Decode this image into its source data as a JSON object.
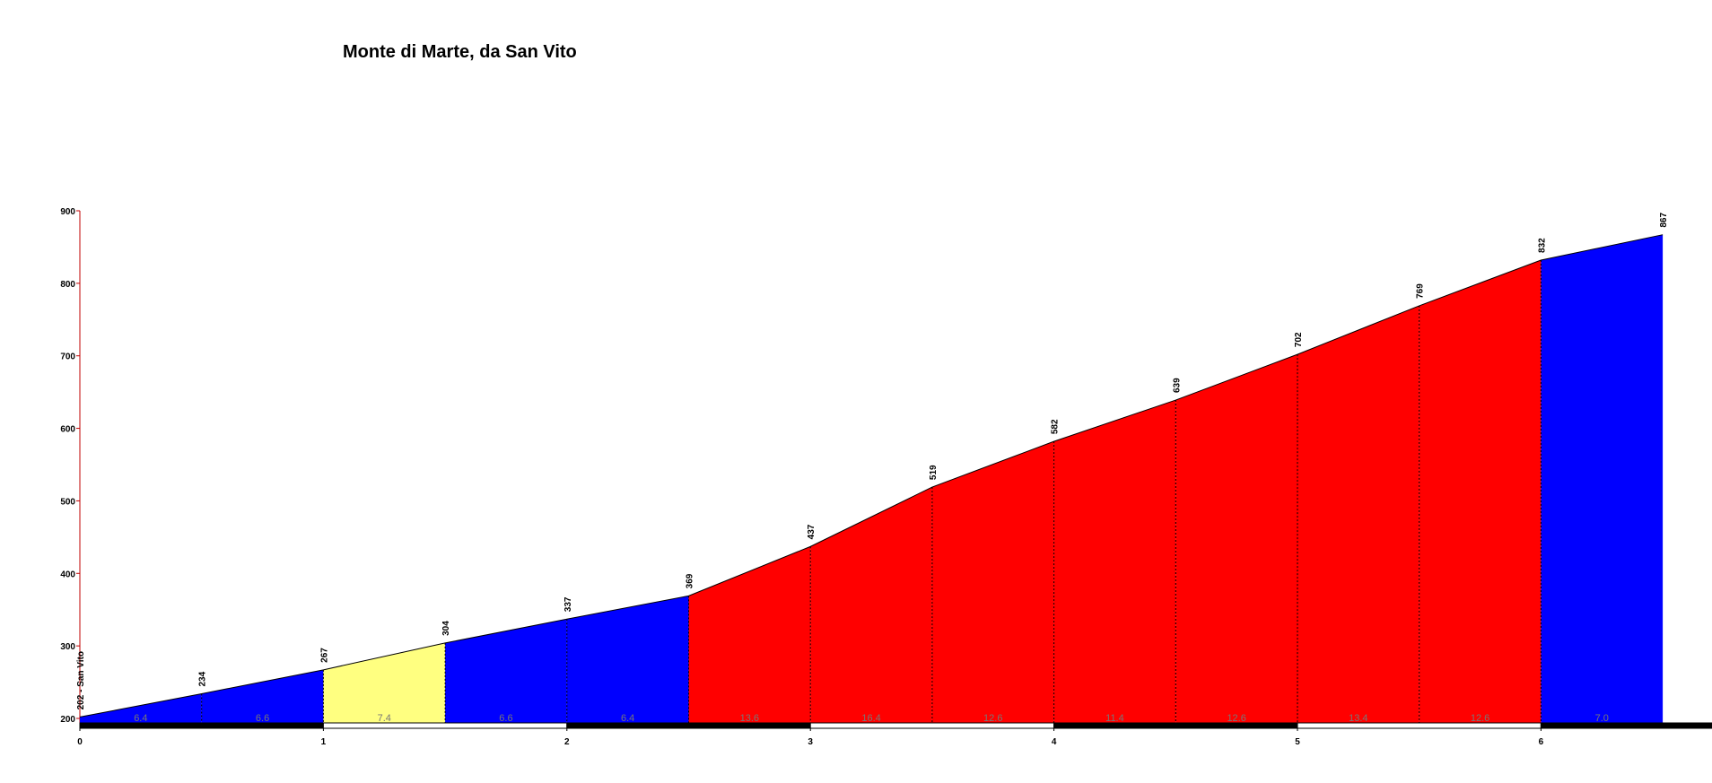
{
  "chart_data": {
    "type": "area",
    "title": "Monte di Marte, da San Vito",
    "x": [
      0,
      0.5,
      1,
      1.5,
      2,
      2.5,
      3,
      3.5,
      4,
      4.5,
      5,
      5.5,
      6,
      6.5
    ],
    "values": [
      202,
      234,
      267,
      304,
      337,
      369,
      437,
      519,
      582,
      639,
      702,
      769,
      832,
      867
    ],
    "value_labels": [
      "202 - San Vito",
      "234",
      "267",
      "304",
      "337",
      "369",
      "437",
      "519",
      "582",
      "639",
      "702",
      "769",
      "832",
      "867"
    ],
    "gradient_labels": [
      "6.4",
      "6.6",
      "7.4",
      "6.6",
      "6.4",
      "13.6",
      "16.4",
      "12.6",
      "11.4",
      "12.6",
      "13.4",
      "12.6",
      "7.0"
    ],
    "segment_colors": [
      "#0000ff",
      "#0000ff",
      "#ffff80",
      "#0000ff",
      "#0000ff",
      "#ff0000",
      "#ff0000",
      "#ff0000",
      "#ff0000",
      "#ff0000",
      "#ff0000",
      "#ff0000",
      "#0000ff"
    ],
    "xlim": [
      0,
      6.5
    ],
    "xticks": [
      0,
      1,
      2,
      3,
      4,
      5,
      6
    ],
    "ylim": [
      200,
      900
    ],
    "yticks": [
      200,
      300,
      400,
      500,
      600,
      700,
      800,
      900
    ]
  }
}
